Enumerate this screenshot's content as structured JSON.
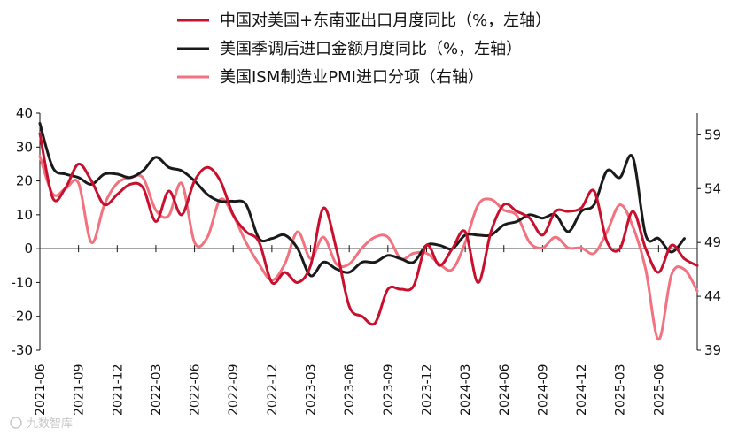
{
  "chart_data": {
    "type": "line",
    "title": "",
    "watermark": "九数智库",
    "legend": {
      "placement": "top-center"
    },
    "x_tick_labels": [
      "2021-06",
      "2021-09",
      "2021-12",
      "2022-03",
      "2022-06",
      "2022-09",
      "2022-12",
      "2023-03",
      "2023-06",
      "2023-09",
      "2023-12",
      "2024-03",
      "2024-06",
      "2024-09",
      "2024-12",
      "2025-03",
      "2025-06"
    ],
    "x": [
      "2021-06",
      "2021-07",
      "2021-08",
      "2021-09",
      "2021-10",
      "2021-11",
      "2021-12",
      "2022-01",
      "2022-02",
      "2022-03",
      "2022-04",
      "2022-05",
      "2022-06",
      "2022-07",
      "2022-08",
      "2022-09",
      "2022-10",
      "2022-11",
      "2022-12",
      "2023-01",
      "2023-02",
      "2023-03",
      "2023-04",
      "2023-05",
      "2023-06",
      "2023-07",
      "2023-08",
      "2023-09",
      "2023-10",
      "2023-11",
      "2023-12",
      "2024-01",
      "2024-02",
      "2024-03",
      "2024-04",
      "2024-05",
      "2024-06",
      "2024-07",
      "2024-08",
      "2024-09",
      "2024-10",
      "2024-11",
      "2024-12",
      "2025-01",
      "2025-02",
      "2025-03",
      "2025-04",
      "2025-05",
      "2025-06",
      "2025-07",
      "2025-08",
      "2025-09"
    ],
    "y_left": {
      "range": [
        -30,
        40
      ],
      "ticks": [
        -30,
        -20,
        -10,
        0,
        10,
        20,
        30,
        40
      ]
    },
    "y_right": {
      "range": [
        39,
        61
      ],
      "ticks": [
        39,
        44,
        49,
        54,
        59
      ]
    },
    "series": [
      {
        "name": "中国对美国+东南亚出口月度同比（%，左轴）",
        "axis": "left",
        "color": "#c8102e",
        "values": [
          34,
          15,
          18,
          25,
          20,
          13,
          16,
          19,
          18,
          8,
          17,
          10,
          20,
          24,
          20,
          10,
          5,
          2,
          -10,
          -7,
          -10,
          -5,
          12,
          0,
          -17,
          -20,
          -22,
          -12,
          -12,
          -11,
          1,
          -5,
          0,
          5,
          -10,
          5,
          13,
          11,
          9,
          4,
          11,
          11,
          12,
          17,
          2,
          0,
          11,
          0,
          -7,
          1,
          -3,
          -5
        ],
        "interpolate": true
      },
      {
        "name": "美国季调后进口金额月度同比（%，左轴）",
        "axis": "left",
        "color": "#1a1a1a",
        "values": [
          37,
          24,
          22,
          21,
          19,
          22,
          22,
          21,
          23,
          27,
          24,
          23,
          20,
          16,
          14,
          14,
          13,
          3,
          3,
          4,
          0,
          -8,
          -4,
          -6,
          -7,
          -4,
          -4,
          -2,
          -3,
          -4,
          1,
          1,
          0,
          4,
          4,
          4,
          7,
          8,
          10,
          9,
          10,
          5,
          11,
          13,
          23,
          21,
          27,
          4,
          3,
          -1,
          3,
          null
        ],
        "interpolate": true
      },
      {
        "name": "美国ISM制造业PMI进口分项（右轴）",
        "axis": "right",
        "color": "#f2727f",
        "values": [
          57,
          53.5,
          54,
          54.5,
          49,
          52.5,
          54.5,
          55,
          55,
          52,
          51.5,
          54.5,
          49,
          49.5,
          53,
          51.5,
          49,
          47,
          45.5,
          47,
          50,
          47.5,
          49.5,
          47,
          47,
          48.5,
          49.5,
          49.5,
          47.5,
          48,
          48,
          47,
          46.5,
          49,
          52.5,
          53,
          52,
          51.5,
          49,
          48.5,
          49.5,
          48.5,
          48.5,
          48,
          50,
          52.5,
          50.5,
          46.5,
          40,
          46,
          46.5,
          44.5
        ],
        "interpolate": true
      }
    ]
  }
}
